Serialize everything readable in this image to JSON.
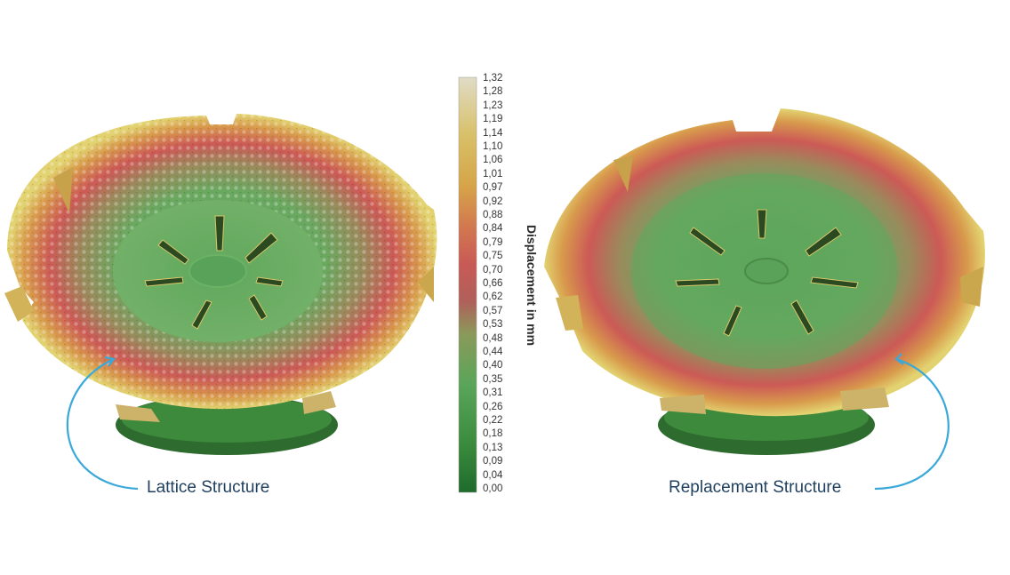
{
  "legend": {
    "title": "Displacement in mm",
    "ticks": [
      "1,32",
      "1,28",
      "1,23",
      "1,19",
      "1,14",
      "1,10",
      "1,06",
      "1,01",
      "0,97",
      "0,92",
      "0,88",
      "0,84",
      "0,79",
      "0,75",
      "0,70",
      "0,66",
      "0,62",
      "0,57",
      "0,53",
      "0,48",
      "0,44",
      "0,40",
      "0,35",
      "0,31",
      "0,26",
      "0,22",
      "0,18",
      "0,13",
      "0,09",
      "0,04",
      "0,00"
    ],
    "colors": [
      "#1f6b2c",
      "#3c8c3e",
      "#5aa55a",
      "#8a9a5a",
      "#b0605a",
      "#c85a55",
      "#d27850",
      "#d6a548",
      "#d8c068",
      "#e0dcc6"
    ]
  },
  "annotations": {
    "left_label": "Lattice Structure",
    "right_label": "Replacement Structure",
    "arrow_color": "#3aa8d8"
  }
}
